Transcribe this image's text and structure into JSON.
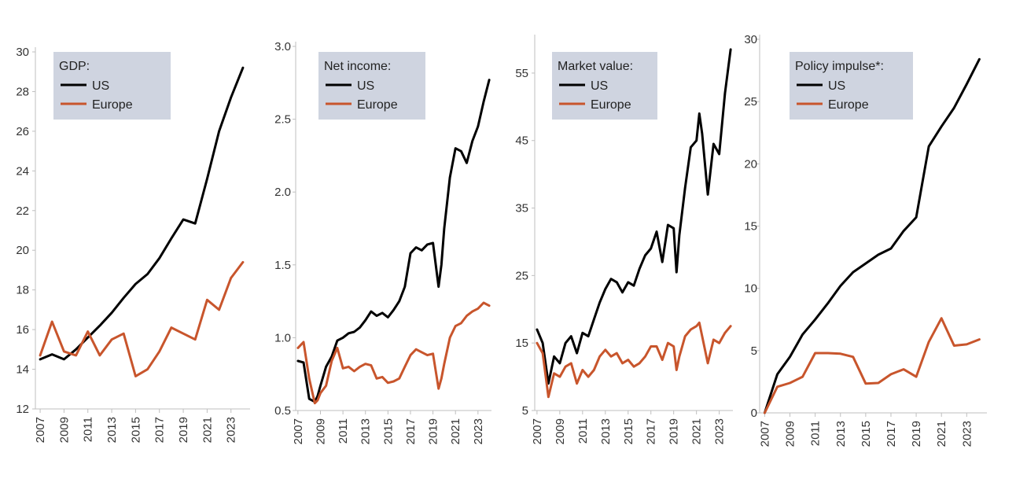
{
  "colors": {
    "us": "#000000",
    "europe": "#c8552c",
    "legend_bg": "#cfd4e0"
  },
  "chart_data": [
    {
      "type": "line",
      "legend_title": "GDP:",
      "ylim": [
        12,
        30
      ],
      "yticks": [
        12,
        14,
        16,
        18,
        20,
        22,
        24,
        26,
        28,
        30
      ],
      "ytick_labels": [
        "12",
        "14",
        "16",
        "18",
        "20",
        "22",
        "24",
        "26",
        "28",
        "30"
      ],
      "xlim": [
        2006.6,
        2024.6
      ],
      "xticks": [
        2007,
        2009,
        2011,
        2013,
        2015,
        2017,
        2019,
        2021,
        2023
      ],
      "xtick_labels": [
        "2007",
        "2009",
        "2011",
        "2013",
        "2015",
        "2017",
        "2019",
        "2021",
        "2023"
      ],
      "legend": {
        "position": "top-left"
      },
      "grid": false,
      "series": [
        {
          "name": "US",
          "color_key": "us",
          "x": [
            2007,
            2008,
            2009,
            2010,
            2011,
            2012,
            2013,
            2014,
            2015,
            2016,
            2017,
            2018,
            2019,
            2020,
            2021,
            2022,
            2023,
            2024
          ],
          "y": [
            14.5,
            14.75,
            14.5,
            15.0,
            15.6,
            16.2,
            16.85,
            17.6,
            18.3,
            18.8,
            19.6,
            20.6,
            21.55,
            21.35,
            23.6,
            26.0,
            27.7,
            29.2
          ]
        },
        {
          "name": "Europe",
          "color_key": "europe",
          "x": [
            2007,
            2008,
            2009,
            2010,
            2011,
            2012,
            2013,
            2014,
            2015,
            2016,
            2017,
            2018,
            2019,
            2020,
            2021,
            2022,
            2023,
            2024
          ],
          "y": [
            14.7,
            16.4,
            14.9,
            14.7,
            15.9,
            14.7,
            15.5,
            15.8,
            13.65,
            14.0,
            14.9,
            16.1,
            15.8,
            15.5,
            17.5,
            17.0,
            18.6,
            19.4
          ]
        }
      ]
    },
    {
      "type": "line",
      "legend_title": "Net income:",
      "ylim": [
        0.5,
        3.0
      ],
      "yticks": [
        0.5,
        1.0,
        1.5,
        2.0,
        2.5,
        3.0
      ],
      "ytick_labels": [
        "0.5",
        "1.0",
        "1.5",
        "2.0",
        "2.5",
        "3.0"
      ],
      "xlim": [
        2006.8,
        2024.2
      ],
      "xticks": [
        2007,
        2009,
        2011,
        2013,
        2015,
        2017,
        2019,
        2021,
        2023
      ],
      "xtick_labels": [
        "2007",
        "2009",
        "2011",
        "2013",
        "2015",
        "2017",
        "2019",
        "2021",
        "2023"
      ],
      "legend": {
        "position": "top-left"
      },
      "grid": false,
      "series": [
        {
          "name": "US",
          "color_key": "us",
          "x": [
            2007,
            2007.5,
            2008,
            2008.5,
            2008.75,
            2009,
            2009.5,
            2010,
            2010.5,
            2011,
            2011.5,
            2012,
            2012.5,
            2013,
            2013.5,
            2014,
            2014.5,
            2015,
            2015.5,
            2016,
            2016.5,
            2017,
            2017.5,
            2018,
            2018.5,
            2019,
            2019.5,
            2019.75,
            2020,
            2020.5,
            2021,
            2021.5,
            2022,
            2022.5,
            2023,
            2023.5,
            2024
          ],
          "y": [
            0.84,
            0.83,
            0.58,
            0.56,
            0.6,
            0.67,
            0.8,
            0.87,
            0.98,
            1.0,
            1.03,
            1.04,
            1.07,
            1.12,
            1.18,
            1.15,
            1.17,
            1.14,
            1.19,
            1.25,
            1.35,
            1.58,
            1.62,
            1.6,
            1.64,
            1.65,
            1.35,
            1.5,
            1.75,
            2.1,
            2.3,
            2.28,
            2.2,
            2.35,
            2.45,
            2.62,
            2.77
          ]
        },
        {
          "name": "Europe",
          "color_key": "europe",
          "x": [
            2007,
            2007.5,
            2008,
            2008.5,
            2008.75,
            2009,
            2009.5,
            2010,
            2010.5,
            2011,
            2011.5,
            2012,
            2012.5,
            2013,
            2013.5,
            2014,
            2014.5,
            2015,
            2015.5,
            2016,
            2016.5,
            2017,
            2017.5,
            2018,
            2018.5,
            2019,
            2019.5,
            2019.75,
            2020,
            2020.5,
            2021,
            2021.5,
            2022,
            2022.5,
            2023,
            2023.5,
            2024
          ],
          "y": [
            0.93,
            0.97,
            0.72,
            0.55,
            0.57,
            0.62,
            0.67,
            0.84,
            0.93,
            0.79,
            0.8,
            0.77,
            0.8,
            0.82,
            0.81,
            0.72,
            0.73,
            0.69,
            0.7,
            0.72,
            0.8,
            0.88,
            0.92,
            0.9,
            0.88,
            0.89,
            0.65,
            0.72,
            0.82,
            1.0,
            1.08,
            1.1,
            1.15,
            1.18,
            1.2,
            1.24,
            1.22
          ]
        }
      ]
    },
    {
      "type": "line",
      "legend_title": "Market value:",
      "ylim": [
        5,
        60
      ],
      "yticks": [
        5,
        15,
        25,
        35,
        45,
        55
      ],
      "ytick_labels": [
        "5",
        "15",
        "25",
        "35",
        "45",
        "55"
      ],
      "xlim": [
        2006.8,
        2024.2
      ],
      "xticks": [
        2007,
        2009,
        2011,
        2013,
        2015,
        2017,
        2019,
        2021,
        2023
      ],
      "xtick_labels": [
        "2007",
        "2009",
        "2011",
        "2013",
        "2015",
        "2017",
        "2019",
        "2021",
        "2023"
      ],
      "legend": {
        "position": "top-left"
      },
      "grid": false,
      "series": [
        {
          "name": "US",
          "color_key": "us",
          "x": [
            2007,
            2007.5,
            2008,
            2008.5,
            2009,
            2009.5,
            2010,
            2010.5,
            2011,
            2011.5,
            2012,
            2012.5,
            2013,
            2013.5,
            2014,
            2014.5,
            2015,
            2015.5,
            2016,
            2016.5,
            2017,
            2017.5,
            2018,
            2018.5,
            2019,
            2019.25,
            2019.5,
            2020,
            2020.5,
            2021,
            2021.25,
            2021.5,
            2022,
            2022.5,
            2023,
            2023.5,
            2024
          ],
          "y": [
            17,
            15,
            9,
            13,
            12,
            15,
            16,
            13.5,
            16.5,
            16,
            18.5,
            21,
            23,
            24.5,
            24,
            22.5,
            24,
            23.5,
            26,
            28,
            29,
            31.5,
            27,
            32.5,
            32,
            25.5,
            31,
            38,
            44,
            45,
            49,
            46,
            37,
            44.5,
            43,
            52,
            58.5
          ]
        },
        {
          "name": "Europe",
          "color_key": "europe",
          "x": [
            2007,
            2007.5,
            2008,
            2008.5,
            2009,
            2009.5,
            2010,
            2010.5,
            2011,
            2011.5,
            2012,
            2012.5,
            2013,
            2013.5,
            2014,
            2014.5,
            2015,
            2015.5,
            2016,
            2016.5,
            2017,
            2017.5,
            2018,
            2018.5,
            2019,
            2019.25,
            2019.5,
            2020,
            2020.5,
            2021,
            2021.25,
            2021.5,
            2022,
            2022.5,
            2023,
            2023.5,
            2024
          ],
          "y": [
            15,
            13.5,
            7,
            10.5,
            10,
            11.5,
            12,
            9,
            11,
            10,
            11,
            13,
            14,
            13,
            13.5,
            12,
            12.5,
            11.5,
            12,
            13,
            14.5,
            14.5,
            12.5,
            15,
            14.5,
            11,
            13,
            16,
            17,
            17.5,
            18,
            16,
            12,
            15.5,
            15,
            16.5,
            17.5
          ]
        }
      ]
    },
    {
      "type": "line",
      "legend_title": "Policy impulse*:",
      "ylim": [
        0,
        30
      ],
      "yticks": [
        0,
        5,
        10,
        15,
        20,
        25,
        30
      ],
      "ytick_labels": [
        "0",
        "5",
        "10",
        "15",
        "20",
        "25",
        "30"
      ],
      "xlim": [
        2006.6,
        2024.6
      ],
      "xticks": [
        2007,
        2009,
        2011,
        2013,
        2015,
        2017,
        2019,
        2021,
        2023
      ],
      "xtick_labels": [
        "2007",
        "2009",
        "2011",
        "2013",
        "2015",
        "2017",
        "2019",
        "2021",
        "2023"
      ],
      "legend": {
        "position": "top-left"
      },
      "grid": false,
      "series": [
        {
          "name": "US",
          "color_key": "us",
          "x": [
            2007,
            2008,
            2009,
            2010,
            2011,
            2012,
            2013,
            2014,
            2015,
            2016,
            2017,
            2018,
            2019,
            2020,
            2021,
            2022,
            2023,
            2024
          ],
          "y": [
            0,
            3.1,
            4.5,
            6.3,
            7.5,
            8.8,
            10.2,
            11.3,
            12.0,
            12.7,
            13.2,
            14.6,
            15.7,
            21.4,
            23.0,
            24.5,
            26.4,
            28.4
          ]
        },
        {
          "name": "Europe",
          "color_key": "europe",
          "x": [
            2007,
            2008,
            2009,
            2010,
            2011,
            2012,
            2013,
            2014,
            2015,
            2016,
            2017,
            2018,
            2019,
            2020,
            2021,
            2022,
            2023,
            2024
          ],
          "y": [
            0,
            2.1,
            2.4,
            2.9,
            4.8,
            4.8,
            4.75,
            4.5,
            2.35,
            2.4,
            3.1,
            3.5,
            2.9,
            5.7,
            7.6,
            5.4,
            5.5,
            5.9
          ]
        }
      ]
    }
  ]
}
